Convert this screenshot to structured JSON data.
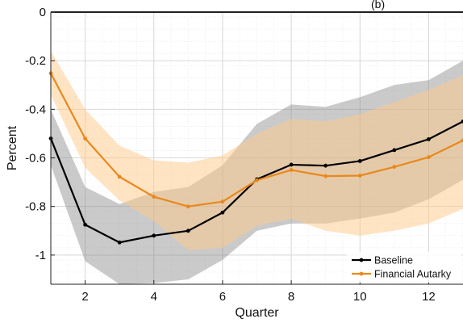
{
  "page": {
    "top_title_fragment": "(b)"
  },
  "chart_data": {
    "type": "line",
    "title": "",
    "xlabel": "Quarter",
    "ylabel": "Percent",
    "xlim": [
      1,
      13
    ],
    "ylim": [
      -1.12,
      0
    ],
    "xticks": [
      2,
      4,
      6,
      8,
      10,
      12
    ],
    "xtick_labels": [
      "2",
      "4",
      "6",
      "8",
      "10",
      "12"
    ],
    "yticks": [
      -1,
      -0.8,
      -0.6,
      -0.4,
      -0.2,
      0
    ],
    "ytick_labels": [
      "-1",
      "-0.8",
      "-0.6",
      "-0.4",
      "-0.2",
      "0"
    ],
    "x": [
      1,
      2,
      3,
      4,
      5,
      6,
      7,
      8,
      9,
      10,
      11,
      12,
      13
    ],
    "grid": true,
    "legend": {
      "position": "bottom-right"
    },
    "zero_line": true,
    "series": [
      {
        "name": "Baseline",
        "color": "#000000",
        "band_color": "#808080",
        "values": [
          -0.52,
          -0.875,
          -0.948,
          -0.92,
          -0.9,
          -0.825,
          -0.688,
          -0.628,
          -0.632,
          -0.613,
          -0.568,
          -0.523,
          -0.45
        ],
        "lower": [
          -0.63,
          -1.025,
          -1.12,
          -1.115,
          -1.1,
          -1.02,
          -0.9,
          -0.87,
          -0.87,
          -0.85,
          -0.825,
          -0.77,
          -0.69
        ],
        "upper": [
          -0.4,
          -0.72,
          -0.79,
          -0.74,
          -0.72,
          -0.63,
          -0.46,
          -0.38,
          -0.39,
          -0.35,
          -0.3,
          -0.28,
          -0.2
        ]
      },
      {
        "name": "Financial Autarky",
        "color": "#E8891C",
        "band_color": "#FFC98A",
        "values": [
          -0.252,
          -0.52,
          -0.678,
          -0.76,
          -0.8,
          -0.78,
          -0.692,
          -0.65,
          -0.675,
          -0.673,
          -0.637,
          -0.597,
          -0.528
        ],
        "lower": [
          -0.34,
          -0.64,
          -0.775,
          -0.86,
          -0.98,
          -0.97,
          -0.88,
          -0.85,
          -0.9,
          -0.92,
          -0.9,
          -0.87,
          -0.81
        ],
        "upper": [
          -0.16,
          -0.4,
          -0.55,
          -0.61,
          -0.62,
          -0.59,
          -0.5,
          -0.44,
          -0.45,
          -0.42,
          -0.37,
          -0.32,
          -0.26
        ]
      }
    ]
  }
}
